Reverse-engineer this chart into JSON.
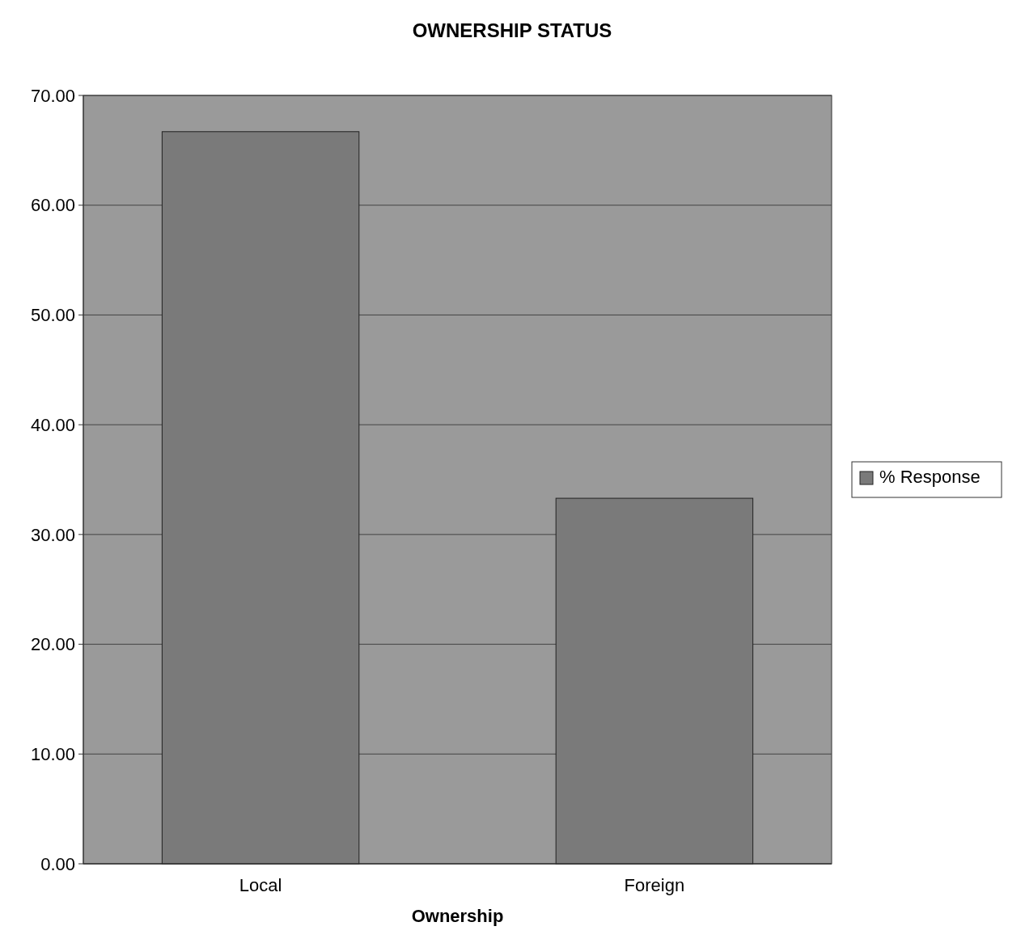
{
  "chart_data": {
    "type": "bar",
    "title": "OWNERSHIP STATUS",
    "xlabel": "Ownership",
    "categories": [
      "Local",
      "Foreign"
    ],
    "series": [
      {
        "name": "% Response",
        "color": "#7a7a7a",
        "values": [
          66.7,
          33.3
        ]
      }
    ],
    "ylim": [
      0,
      70
    ],
    "yticks": [
      {
        "value": 0,
        "label": "0.00"
      },
      {
        "value": 10,
        "label": "10.00"
      },
      {
        "value": 20,
        "label": "20.00"
      },
      {
        "value": 30,
        "label": "30.00"
      },
      {
        "value": 40,
        "label": "40.00"
      },
      {
        "value": 50,
        "label": "50.00"
      },
      {
        "value": 60,
        "label": "60.00"
      },
      {
        "value": 70,
        "label": "70.00"
      }
    ],
    "grid": "y",
    "legend": "right"
  }
}
